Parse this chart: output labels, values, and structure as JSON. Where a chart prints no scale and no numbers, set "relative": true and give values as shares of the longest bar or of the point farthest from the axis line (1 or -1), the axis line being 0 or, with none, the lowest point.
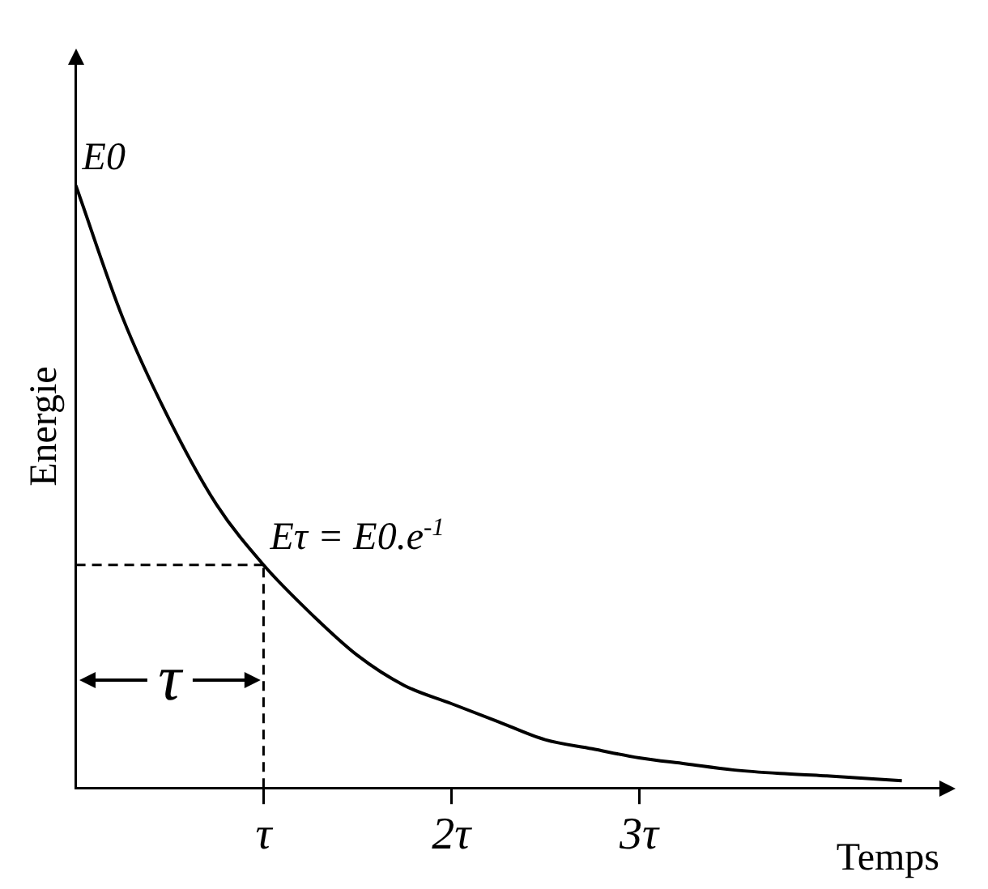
{
  "chart_data": {
    "type": "line",
    "relative": true,
    "xlabel": "Temps",
    "ylabel": "Energie",
    "x": [
      0,
      0.25,
      0.5,
      0.75,
      1,
      1.25,
      1.5,
      1.75,
      2,
      2.25,
      2.5,
      2.75,
      3,
      3.25,
      3.5,
      3.75,
      4,
      4.4
    ],
    "series": [
      {
        "color": "#000000",
        "values": [
          1,
          0.78,
          0.61,
          0.47,
          0.37,
          0.29,
          0.22,
          0.17,
          0.14,
          0.11,
          0.08,
          0.065,
          0.05,
          0.04,
          0.03,
          0.024,
          0.02,
          0.012
        ]
      }
    ],
    "xlim": [
      0,
      4.6
    ],
    "xticks": [
      {
        "value": 1,
        "label": "τ"
      },
      {
        "value": 2,
        "label": "2τ"
      },
      {
        "value": 3,
        "label": "3τ"
      }
    ],
    "ref_lines": [
      {
        "axis": "x",
        "value": 1,
        "line_style": "dashed"
      },
      {
        "axis": "y",
        "value": 0.37,
        "line_style": "dashed"
      }
    ],
    "annotations": [
      {
        "text": "E0",
        "x": 0,
        "y": 1
      },
      "τ",
      {
        "text": "Eτ = E0.e$^{-1}$",
        "x": 1,
        "y": 0.37
      }
    ],
    "grid": false,
    "legend": false,
    "marker": "none",
    "line_style": "solid"
  }
}
